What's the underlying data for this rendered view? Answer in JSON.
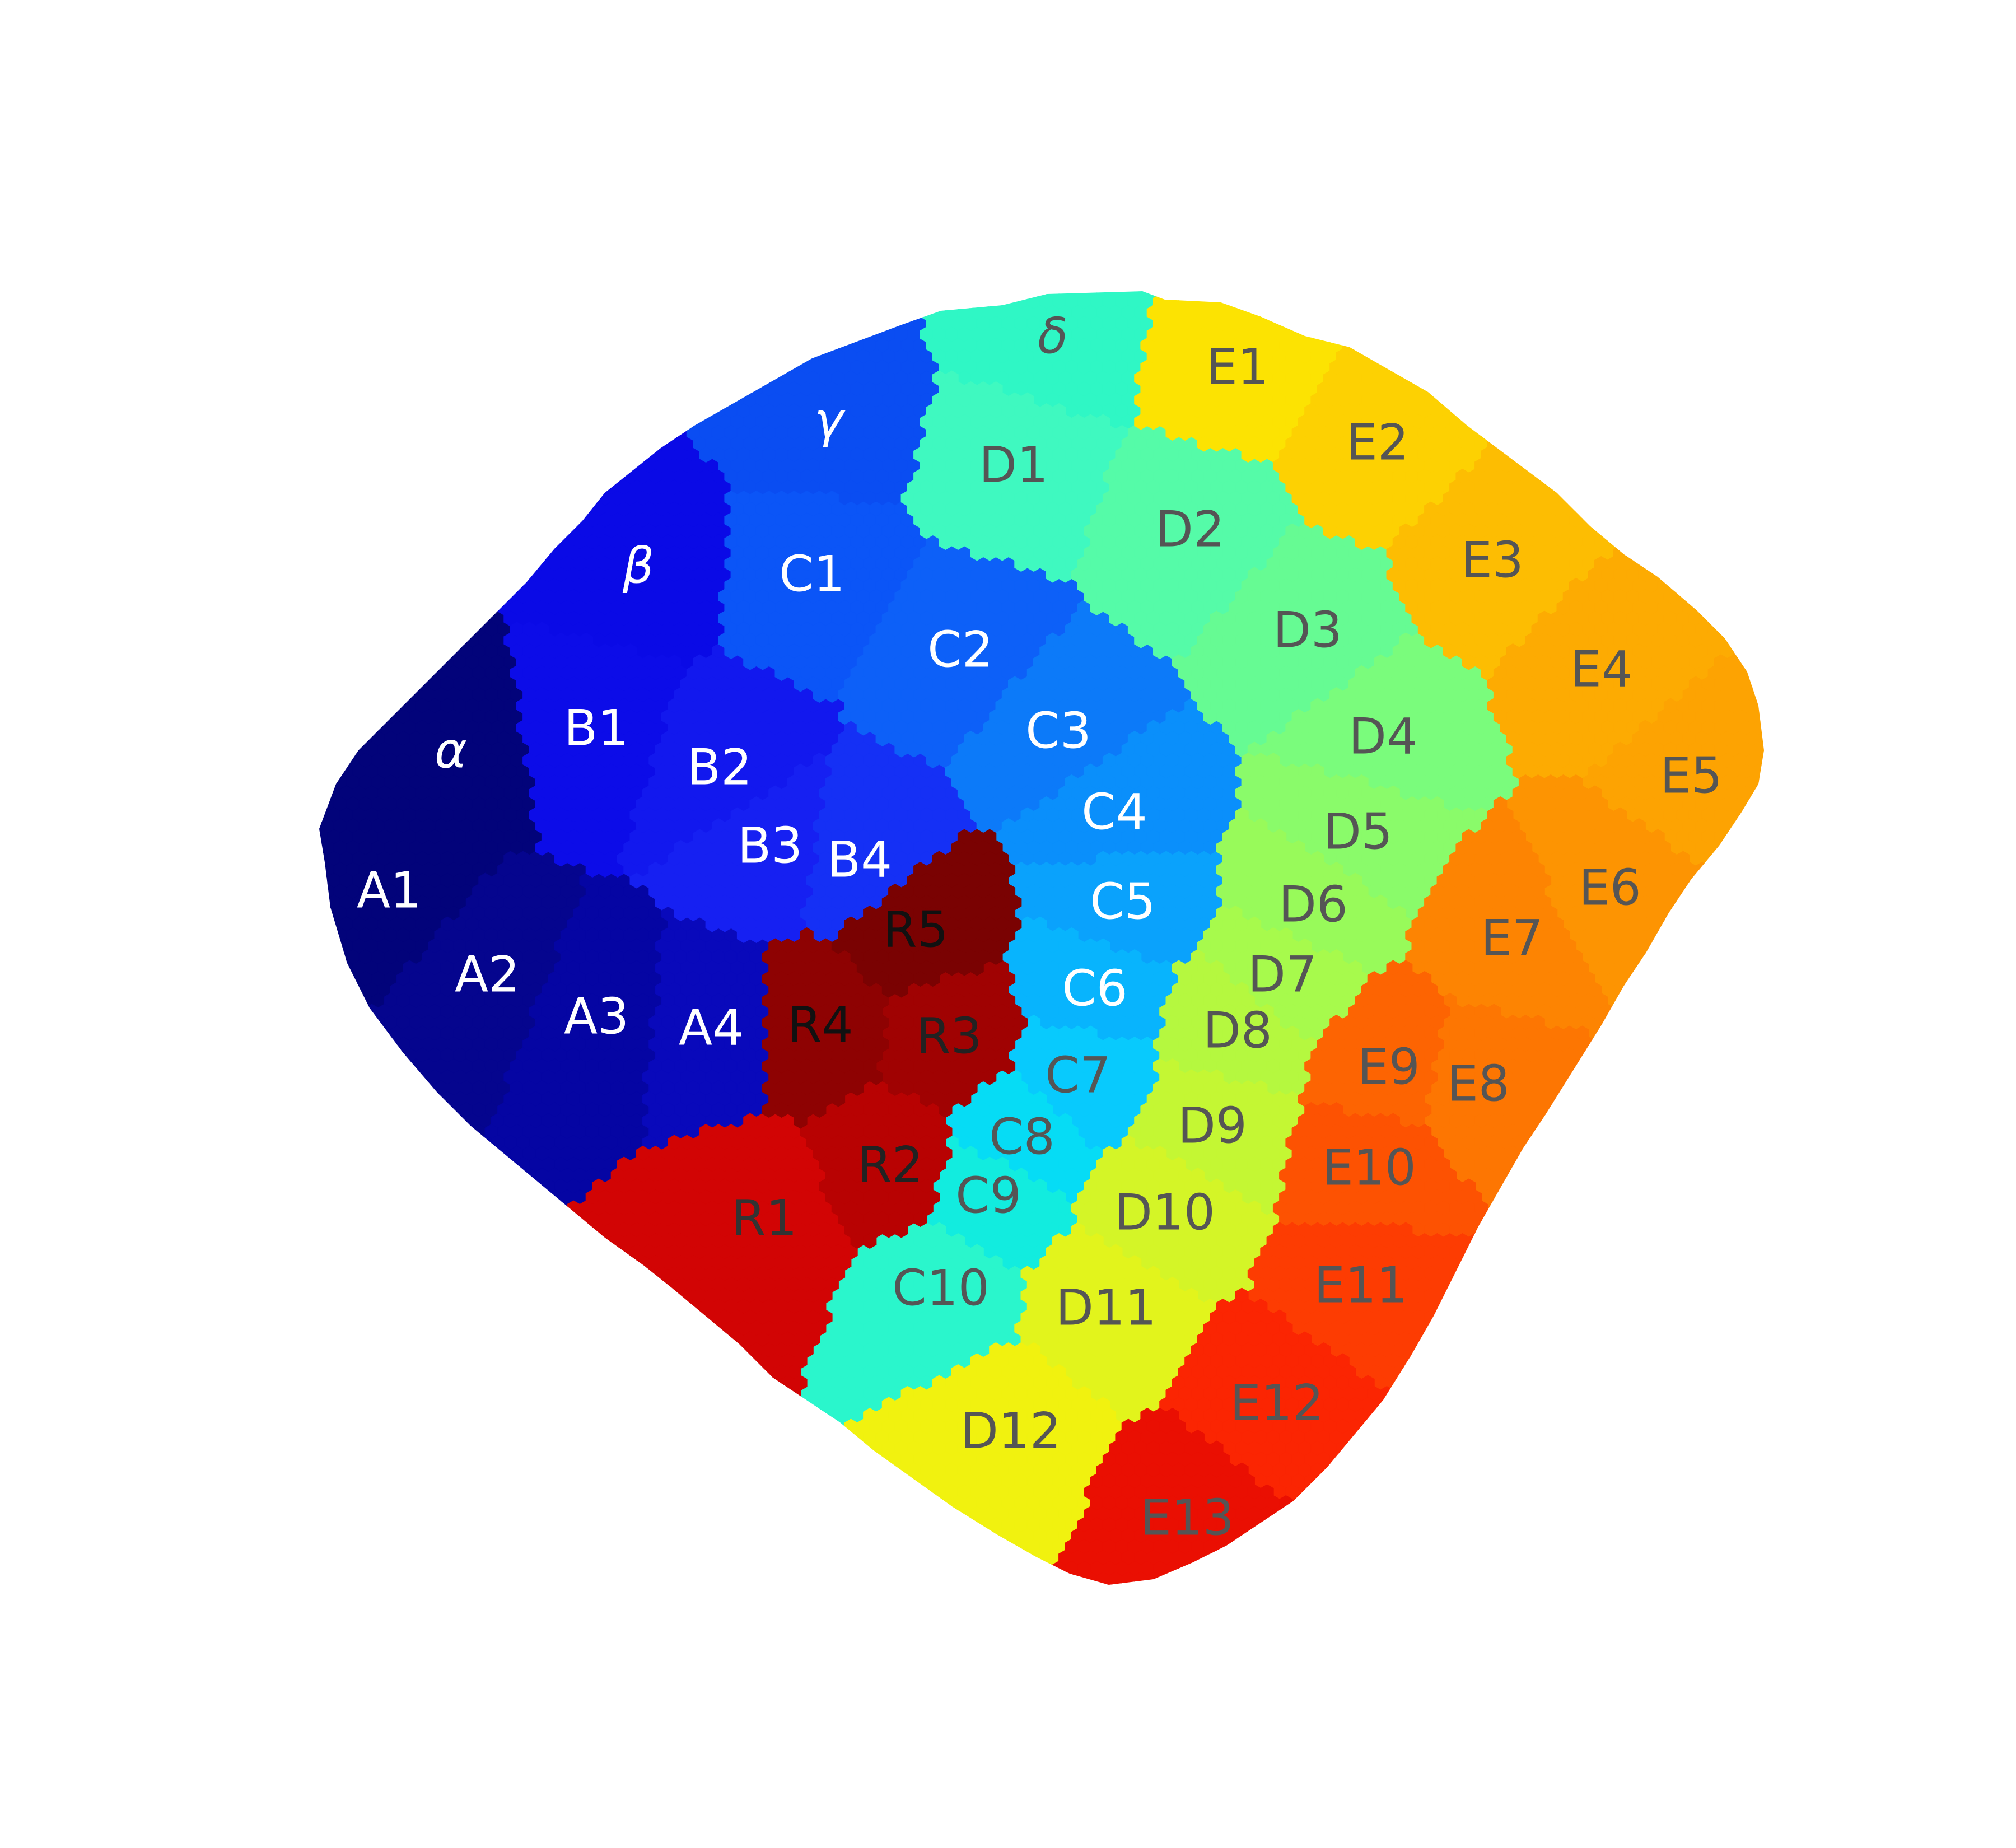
{
  "regions": [
    {
      "id": "alpha",
      "label": "α",
      "color": "#02037a",
      "text_color": "#ffffff"
    },
    {
      "id": "beta",
      "label": "β",
      "color": "#0a0ae6",
      "text_color": "#ffffff"
    },
    {
      "id": "gamma",
      "label": "γ",
      "color": "#0a4df2",
      "text_color": "#ffffff"
    },
    {
      "id": "delta",
      "label": "δ",
      "color": "#2ff7c5",
      "text_color": "#555555"
    },
    {
      "id": "A1",
      "label": "A1",
      "color": "#02037a",
      "text_color": "#ffffff"
    },
    {
      "id": "A2",
      "label": "A2",
      "color": "#05058e",
      "text_color": "#ffffff"
    },
    {
      "id": "A3",
      "label": "A3",
      "color": "#0505a3",
      "text_color": "#ffffff"
    },
    {
      "id": "A4",
      "label": "A4",
      "color": "#0909bb",
      "text_color": "#ffffff"
    },
    {
      "id": "B1",
      "label": "B1",
      "color": "#0c0ce8",
      "text_color": "#ffffff"
    },
    {
      "id": "B2",
      "label": "B2",
      "color": "#1218ee",
      "text_color": "#ffffff"
    },
    {
      "id": "B3",
      "label": "B3",
      "color": "#1620f2",
      "text_color": "#ffffff"
    },
    {
      "id": "B4",
      "label": "B4",
      "color": "#1530f5",
      "text_color": "#ffffff"
    },
    {
      "id": "C1",
      "label": "C1",
      "color": "#0b55f7",
      "text_color": "#ffffff"
    },
    {
      "id": "C2",
      "label": "C2",
      "color": "#0d60f8",
      "text_color": "#ffffff"
    },
    {
      "id": "C3",
      "label": "C3",
      "color": "#0c7af9",
      "text_color": "#ffffff"
    },
    {
      "id": "C4",
      "label": "C4",
      "color": "#0a8ffb",
      "text_color": "#ffffff"
    },
    {
      "id": "C5",
      "label": "C5",
      "color": "#0aa2fc",
      "text_color": "#ffffff"
    },
    {
      "id": "C6",
      "label": "C6",
      "color": "#08b4fd",
      "text_color": "#ffffff"
    },
    {
      "id": "C7",
      "label": "C7",
      "color": "#08cafd",
      "text_color": "#555555"
    },
    {
      "id": "C8",
      "label": "C8",
      "color": "#06dcf5",
      "text_color": "#555555"
    },
    {
      "id": "C9",
      "label": "C9",
      "color": "#12ecdf",
      "text_color": "#555555"
    },
    {
      "id": "C10",
      "label": "C10",
      "color": "#2af6cc",
      "text_color": "#555555"
    },
    {
      "id": "D1",
      "label": "D1",
      "color": "#3ff9c0",
      "text_color": "#555555"
    },
    {
      "id": "D2",
      "label": "D2",
      "color": "#55fba8",
      "text_color": "#555555"
    },
    {
      "id": "D3",
      "label": "D3",
      "color": "#66fb93",
      "text_color": "#555555"
    },
    {
      "id": "D4",
      "label": "D4",
      "color": "#7afc7c",
      "text_color": "#555555"
    },
    {
      "id": "D5",
      "label": "D5",
      "color": "#8afb6a",
      "text_color": "#555555"
    },
    {
      "id": "D6",
      "label": "D6",
      "color": "#98fa5a",
      "text_color": "#555555"
    },
    {
      "id": "D7",
      "label": "D7",
      "color": "#a7fa4c",
      "text_color": "#555555"
    },
    {
      "id": "D8",
      "label": "D8",
      "color": "#b5f83f",
      "text_color": "#555555"
    },
    {
      "id": "D9",
      "label": "D9",
      "color": "#c4f733",
      "text_color": "#555555"
    },
    {
      "id": "D10",
      "label": "D10",
      "color": "#d4f527",
      "text_color": "#555555"
    },
    {
      "id": "D11",
      "label": "D11",
      "color": "#e2f41c",
      "text_color": "#555555"
    },
    {
      "id": "D12",
      "label": "D12",
      "color": "#f1f20f",
      "text_color": "#555555"
    },
    {
      "id": "E1",
      "label": "E1",
      "color": "#fce302",
      "text_color": "#555555"
    },
    {
      "id": "E2",
      "label": "E2",
      "color": "#fdd102",
      "text_color": "#555555"
    },
    {
      "id": "E3",
      "label": "E3",
      "color": "#fdbd02",
      "text_color": "#555555"
    },
    {
      "id": "E4",
      "label": "E4",
      "color": "#fdab02",
      "text_color": "#555555"
    },
    {
      "id": "E5",
      "label": "E5",
      "color": "#fda302",
      "text_color": "#555555"
    },
    {
      "id": "E6",
      "label": "E6",
      "color": "#fd9402",
      "text_color": "#555555"
    },
    {
      "id": "E7",
      "label": "E7",
      "color": "#fd8402",
      "text_color": "#555555"
    },
    {
      "id": "E8",
      "label": "E8",
      "color": "#fd7602",
      "text_color": "#555555"
    },
    {
      "id": "E9",
      "label": "E9",
      "color": "#fd6402",
      "text_color": "#555555"
    },
    {
      "id": "E10",
      "label": "E10",
      "color": "#fd5202",
      "text_color": "#555555"
    },
    {
      "id": "E11",
      "label": "E11",
      "color": "#fd3c02",
      "text_color": "#555555"
    },
    {
      "id": "E12",
      "label": "E12",
      "color": "#fb2502",
      "text_color": "#555555"
    },
    {
      "id": "E13",
      "label": "E13",
      "color": "#ea0f02",
      "text_color": "#555555"
    },
    {
      "id": "R1",
      "label": "R1",
      "color": "#d20404",
      "text_color": "#333333"
    },
    {
      "id": "R2",
      "label": "R2",
      "color": "#b80202",
      "text_color": "#222222"
    },
    {
      "id": "R3",
      "label": "R3",
      "color": "#a00202",
      "text_color": "#222222"
    },
    {
      "id": "R4",
      "label": "R4",
      "color": "#8e0202",
      "text_color": "#111111"
    },
    {
      "id": "R5",
      "label": "R5",
      "color": "#7a0202",
      "text_color": "#111111"
    }
  ]
}
